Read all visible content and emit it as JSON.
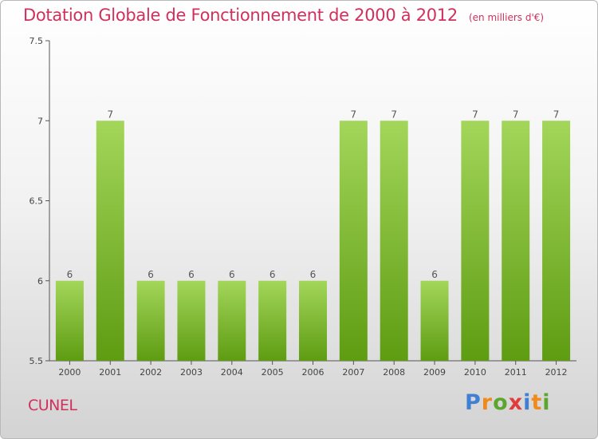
{
  "header": {
    "title": "Dotation Globale de Fonctionnement de 2000 à 2012",
    "unit": "(en milliers d'€)"
  },
  "footer": {
    "city": "CUNEL",
    "logo_text": "Proxiti"
  },
  "colors": {
    "title": "#d0305c",
    "bar_light": "#a3d65a",
    "bar_dark": "#5e9c12",
    "logo_letters": [
      "#3f7fd4",
      "#f08a1c",
      "#5aa62e",
      "#e23b3b",
      "#3f7fd4",
      "#f08a1c",
      "#5aa62e"
    ]
  },
  "chart_data": {
    "type": "bar",
    "title": "Dotation Globale de Fonctionnement de 2000 à 2012",
    "xlabel": "",
    "ylabel": "",
    "categories": [
      "2000",
      "2001",
      "2002",
      "2003",
      "2004",
      "2005",
      "2006",
      "2007",
      "2008",
      "2009",
      "2010",
      "2011",
      "2012"
    ],
    "values": [
      6,
      7,
      6,
      6,
      6,
      6,
      6,
      7,
      7,
      6,
      7,
      7,
      7
    ],
    "data_labels": [
      "6",
      "7",
      "6",
      "6",
      "6",
      "6",
      "6",
      "7",
      "7",
      "6",
      "7",
      "7",
      "7"
    ],
    "ylim": [
      5.5,
      7.5
    ],
    "yticks": [
      "5.5",
      "6",
      "6.5",
      "7",
      "7.5"
    ],
    "grid": false,
    "legend": "none"
  }
}
